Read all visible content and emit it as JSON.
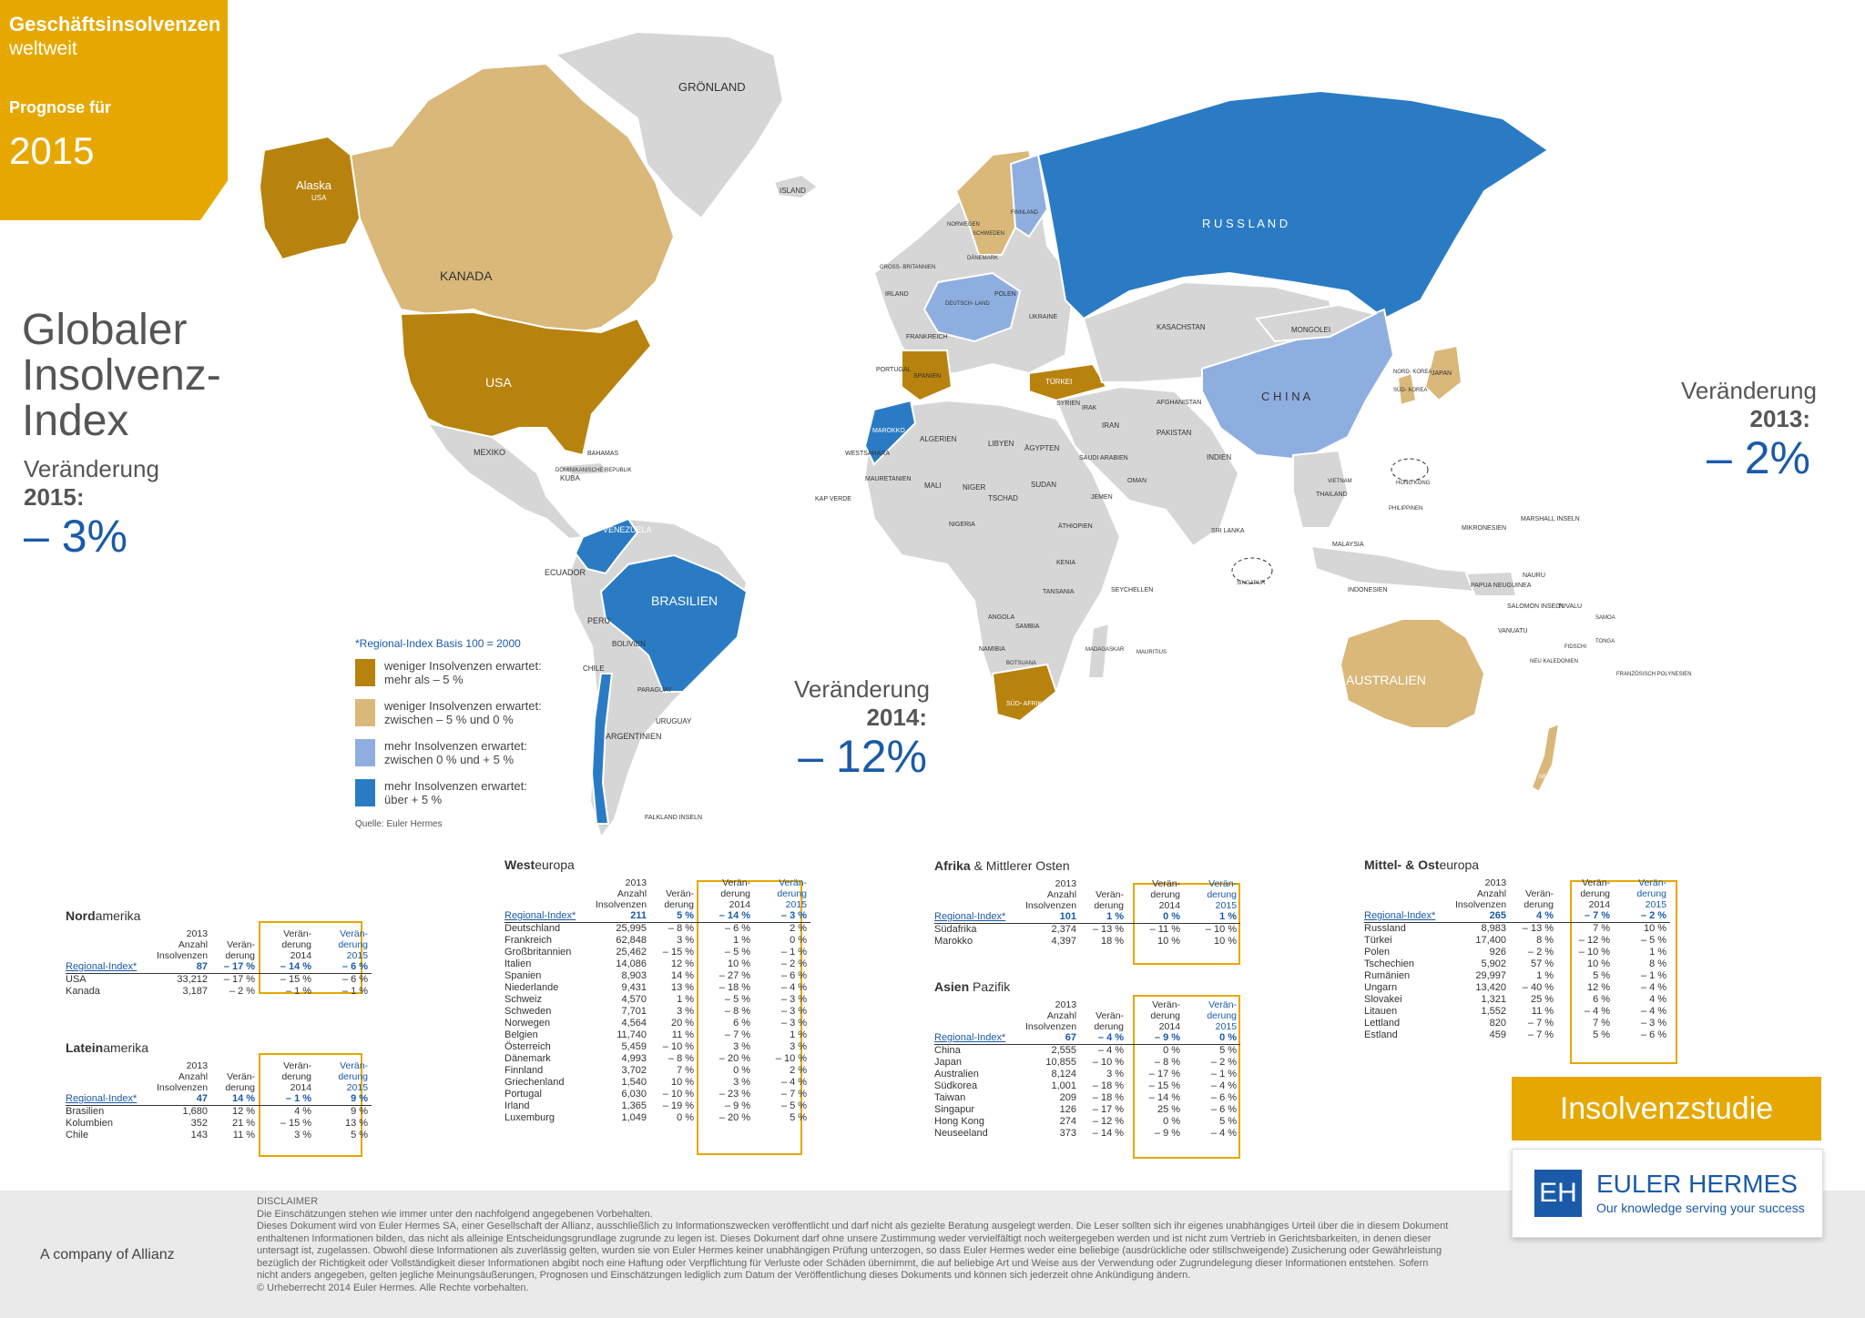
{
  "banner": {
    "title": "Geschäftsinsolvenzen",
    "subtitle": "weltweit",
    "forecast_label": "Prognose für",
    "year": "2015"
  },
  "global_index": {
    "title_lines": [
      "Globaler",
      "Insolvenz-",
      "Index"
    ],
    "change_label": "Veränderung",
    "year": "2015",
    "value": "– 3%"
  },
  "change_2014": {
    "label": "Veränderung",
    "year": "2014",
    "value": "– 12%"
  },
  "change_2013": {
    "label": "Veränderung",
    "year": "2013",
    "value": "– 2%"
  },
  "colors": {
    "accent": "#e6a800",
    "cat1": "#b8820e",
    "cat2": "#d9b87a",
    "cat3": "#8faee0",
    "cat4": "#2a7bc4",
    "neutral": "#d6d6d6",
    "blue_text": "#1a5aa8"
  },
  "map_labels": {
    "groenland": "GRÖNLAND",
    "island": "ISLAND",
    "alaska": "Alaska",
    "alaska_usa": "USA",
    "kanada": "KANADA",
    "usa": "USA",
    "russland": "R U S S L A N D",
    "china": "C H I N A",
    "brasilien": "BRASILIEN",
    "australien": "AUSTRALIEN",
    "mexiko": "MEXIKO",
    "kuba": "KUBA",
    "venezuela": "VENEZUELA",
    "ecuador": "ECUADOR",
    "peru": "PERU",
    "bolivien": "BOLIVIEN",
    "chile": "CHILE",
    "argentinien": "ARGENTINIEN",
    "uruguay": "URUGUAY",
    "paraguay": "PARAGUAY",
    "falkland": "FALKLAND INSELN",
    "bahamas": "BAHAMAS",
    "dom_rep": "DOMINIKANISCHE REPUBLIK",
    "kasachstan": "KASACHSTAN",
    "mongolei": "MONGOLEI",
    "indien": "INDIEN",
    "pakistan": "PAKISTAN",
    "iran": "IRAN",
    "saudi": "SAUDI ARABIEN",
    "tuerkei": "TÜRKEI",
    "ukraine": "UKRAINE",
    "polen": "POLEN",
    "deutschland": "DEUTSCH- LAND",
    "frankreich": "FRANKREICH",
    "spanien": "SPANIEN",
    "portugal": "PORTUGAL",
    "irland": "IRLAND",
    "gb": "GROSS- BRITANNIEN",
    "finnland": "FINNLAND",
    "schweden": "SCHWEDEN",
    "norwegen": "NORWEGEN",
    "daenemark": "DÄNEMARK",
    "algerien": "ALGERIEN",
    "libyen": "LIBYEN",
    "aegypten": "ÄGYPTEN",
    "marokko": "MAROKKO",
    "mali": "MALI",
    "niger": "NIGER",
    "tschad": "TSCHAD",
    "sudan": "SUDAN",
    "nigeria": "NIGERIA",
    "aethiopien": "ÄTHIOPIEN",
    "kenia": "KENIA",
    "angola": "ANGOLA",
    "namibia": "NAMIBIA",
    "sambia": "SAMBIA",
    "botsuana": "BOTSUANA",
    "suedafrika": "SÜD- AFRIKA",
    "madagaskar": "MADAGASKAR",
    "mauretanien": "MAURETANIEN",
    "westsahara": "WESTSAHARA",
    "kap_verde": "KAP VERDE",
    "seychellen": "SEYCHELLEN",
    "mauritius": "MAURITIUS",
    "tansania": "TANSANIA",
    "indonesien": "INDONESIEN",
    "japan": "JAPAN",
    "sued_korea": "SÜD- KOREA",
    "nord_korea": "NORD- KOREA",
    "thailand": "THAILAND",
    "malaysia": "MALAYSIA",
    "vietnam": "VIETNAM",
    "philippinen": "PHILIPPINEN",
    "singapur": "SINGAPUR",
    "hong_kong": "HONG KONG",
    "sri_lanka": "SRI LANKA",
    "neuseeland": "NEUSEELAND",
    "papua": "PAPUA NEUGUINEA",
    "mikronesien": "MIKRONESIEN",
    "marshall": "MARSHALL INSELN",
    "nauru": "NAURU",
    "salomonen": "SALOMON INSELN",
    "tuvalu": "TUVALU",
    "vanuatu": "VANUATU",
    "samoa": "SAMOA",
    "fidschi": "FIDSCHI",
    "tonga": "TONGA",
    "neukaledonien": "NEU KALEDONIEN",
    "franz_polynesien": "FRANZÖSISCH POLYNESIEN",
    "afghanistan": "AFGHANISTAN",
    "jemen": "JEMEN",
    "oman": "OMAN",
    "irak": "IRAK",
    "syrien": "SYRIEN"
  },
  "legend": {
    "title": "*Regional-Index Basis 100 = 2000",
    "items": [
      {
        "line1": "weniger Insolvenzen erwartet:",
        "line2": "mehr als – 5 %"
      },
      {
        "line1": "weniger Insolvenzen erwartet:",
        "line2": "zwischen – 5 % und 0 %"
      },
      {
        "line1": "mehr Insolvenzen erwartet:",
        "line2": "zwischen 0 % und + 5 %"
      },
      {
        "line1": "mehr Insolvenzen erwartet:",
        "line2": "über + 5 %"
      }
    ],
    "source": "Quelle: Euler Hermes"
  },
  "table_headers": {
    "year": "2013",
    "anzahl": "Anzahl Insolvenzen",
    "veraend": "Verän- derung",
    "v2014": "Verän- derung 2014",
    "v2015": "Verän- derung 2015"
  },
  "tables": {
    "nordamerika": {
      "title_bold": "Nord",
      "title_rest": "amerika",
      "regional": [
        "Regional-Index*",
        "87",
        "– 17 %",
        "– 14 %",
        "– 6 %"
      ],
      "rows": [
        [
          "USA",
          "33,212",
          "– 17 %",
          "– 15 %",
          "– 6 %"
        ],
        [
          "Kanada",
          "3,187",
          "– 2 %",
          "– 1 %",
          "– 1 %"
        ]
      ]
    },
    "lateinamerika": {
      "title_bold": "Latein",
      "title_rest": "amerika",
      "regional": [
        "Regional-Index*",
        "47",
        "14 %",
        "– 1 %",
        "9 %"
      ],
      "rows": [
        [
          "Brasilien",
          "1,680",
          "12 %",
          "4 %",
          "9 %"
        ],
        [
          "Kolumbien",
          "352",
          "21 %",
          "– 15 %",
          "13 %"
        ],
        [
          "Chile",
          "143",
          "11 %",
          "3 %",
          "5 %"
        ]
      ]
    },
    "westeuropa": {
      "title_bold": "West",
      "title_rest": "europa",
      "regional": [
        "Regional-Index*",
        "211",
        "5 %",
        "– 14 %",
        "– 3 %"
      ],
      "rows": [
        [
          "Deutschland",
          "25,995",
          "– 8 %",
          "– 6 %",
          "2 %"
        ],
        [
          "Frankreich",
          "62,848",
          "3 %",
          "1 %",
          "0 %"
        ],
        [
          "Großbritannien",
          "25,462",
          "– 15 %",
          "– 5 %",
          "– 1 %"
        ],
        [
          "Italien",
          "14,086",
          "12 %",
          "10 %",
          "– 2 %"
        ],
        [
          "Spanien",
          "8,903",
          "14 %",
          "– 27 %",
          "– 6 %"
        ],
        [
          "Niederlande",
          "9,431",
          "13 %",
          "– 18 %",
          "– 4 %"
        ],
        [
          "Schweiz",
          "4,570",
          "1 %",
          "– 5 %",
          "– 3 %"
        ],
        [
          "Schweden",
          "7,701",
          "3 %",
          "– 8 %",
          "– 3 %"
        ],
        [
          "Norwegen",
          "4,564",
          "20 %",
          "6 %",
          "– 3 %"
        ],
        [
          "Belgien",
          "11,740",
          "11 %",
          "– 7 %",
          "1 %"
        ],
        [
          "Österreich",
          "5,459",
          "– 10 %",
          "3 %",
          "3 %"
        ],
        [
          "Dänemark",
          "4,993",
          "– 8 %",
          "– 20 %",
          "– 10 %"
        ],
        [
          "Finnland",
          "3,702",
          "7 %",
          "0 %",
          "2 %"
        ],
        [
          "Griechenland",
          "1,540",
          "10 %",
          "3 %",
          "– 4 %"
        ],
        [
          "Portugal",
          "6,030",
          "– 10 %",
          "– 23 %",
          "– 7 %"
        ],
        [
          "Irland",
          "1,365",
          "– 19 %",
          "– 9 %",
          "– 5 %"
        ],
        [
          "Luxemburg",
          "1,049",
          "0 %",
          "– 20 %",
          "5 %"
        ]
      ]
    },
    "afrika": {
      "title_bold": "Afrika",
      "title_rest": " & Mittlerer Osten",
      "regional": [
        "Regional-Index*",
        "101",
        "1 %",
        "0 %",
        "1 %"
      ],
      "rows": [
        [
          "Südafrika",
          "2,374",
          "– 13 %",
          "– 11 %",
          "– 10 %"
        ],
        [
          "Marokko",
          "4,397",
          "18 %",
          "10 %",
          "10 %"
        ]
      ]
    },
    "asien": {
      "title_bold": "Asien",
      "title_rest": " Pazifik",
      "regional": [
        "Regional-Index*",
        "67",
        "– 4 %",
        "– 9 %",
        "0 %"
      ],
      "rows": [
        [
          "China",
          "2,555",
          "– 4 %",
          "0 %",
          "5 %"
        ],
        [
          "Japan",
          "10,855",
          "– 10 %",
          "– 8 %",
          "– 2 %"
        ],
        [
          "Australien",
          "8,124",
          "3 %",
          "– 17 %",
          "– 1 %"
        ],
        [
          "Südkorea",
          "1,001",
          "– 18 %",
          "– 15 %",
          "– 4 %"
        ],
        [
          "Taiwan",
          "209",
          "– 18 %",
          "– 14 %",
          "– 6 %"
        ],
        [
          "Singapur",
          "126",
          "– 17 %",
          "25 %",
          "– 6 %"
        ],
        [
          "Hong Kong",
          "274",
          "– 12 %",
          "0 %",
          "5 %"
        ],
        [
          "Neuseeland",
          "373",
          "– 14 %",
          "– 9 %",
          "– 4 %"
        ]
      ]
    },
    "mittelost": {
      "title_bold": "Mittel- & Ost",
      "title_rest": "europa",
      "regional": [
        "Regional-Index*",
        "265",
        "4 %",
        "– 7 %",
        "– 2 %"
      ],
      "rows": [
        [
          "Russland",
          "8,983",
          "– 13 %",
          "7 %",
          "10 %"
        ],
        [
          "Türkei",
          "17,400",
          "8 %",
          "– 12 %",
          "– 5 %"
        ],
        [
          "Polen",
          "926",
          "– 2 %",
          "– 10 %",
          "1 %"
        ],
        [
          "Tschechien",
          "5,902",
          "57 %",
          "10 %",
          "8 %"
        ],
        [
          "Rumänien",
          "29,997",
          "1 %",
          "5 %",
          "– 1 %"
        ],
        [
          "Ungarn",
          "13,420",
          "– 40 %",
          "12 %",
          "– 4 %"
        ],
        [
          "Slovakei",
          "1,321",
          "25 %",
          "6 %",
          "4 %"
        ],
        [
          "Litauen",
          "1,552",
          "11 %",
          "– 4 %",
          "– 4 %"
        ],
        [
          "Lettland",
          "820",
          "– 7 %",
          "7 %",
          "– 3 %"
        ],
        [
          "Estland",
          "459",
          "– 7 %",
          "5 %",
          "– 6 %"
        ]
      ]
    }
  },
  "brand": {
    "study_label": "Insolvenzstudie",
    "logo_mark": "EH",
    "name": "EULER HERMES",
    "tagline": "Our knowledge serving your success",
    "allianz": "A company of Allianz"
  },
  "disclaimer": {
    "title": "DISCLAIMER",
    "lines": [
      "Die Einschätzungen stehen wie immer unter den nachfolgend angegebenen Vorbehalten.",
      "Dieses Dokument wird von Euler Hermes SA, einer Gesellschaft der Allianz, ausschließlich zu Informationszwecken veröffentlicht und darf nicht als gezielte Beratung ausgelegt werden. Die Leser sollten sich ihr eigenes unabhängiges Urteil über die in diesem Dokument",
      "enthaltenen Informationen bilden, das nicht als alleinige Entscheidungsgrundlage zugrunde zu legen ist. Dieses Dokument darf ohne unsere Zustimmung weder vervielfältigt noch weitergegeben werden und ist nicht zum Vertrieb in Gerichtsbarkeiten, in denen dieser",
      "untersagt ist, zugelassen. Obwohl diese Informationen als zuverlässig gelten, wurden sie von Euler Hermes keiner unabhängigen Prüfung unterzogen, so dass Euler Hermes weder eine beliebige (ausdrückliche oder stillschweigende) Zusicherung oder Gewährleistung",
      "bezüglich der Richtigkeit oder Vollständigkeit dieser Informationen abgibt noch eine Haftung oder Verpflichtung für Verluste oder Schäden übernimmt, die auf beliebige Art und Weise aus der Verwendung oder Zugrundelegung dieser Informationen entstehen. Sofern",
      "nicht anders angegeben, gelten jegliche Meinungsäußerungen, Prognosen und Einschätzungen lediglich zum Datum der Veröffentlichung dieses Dokuments und können sich jederzeit ohne Ankündigung ändern.",
      "© Urheberrecht 2014 Euler Hermes. Alle Rechte vorbehalten."
    ]
  }
}
